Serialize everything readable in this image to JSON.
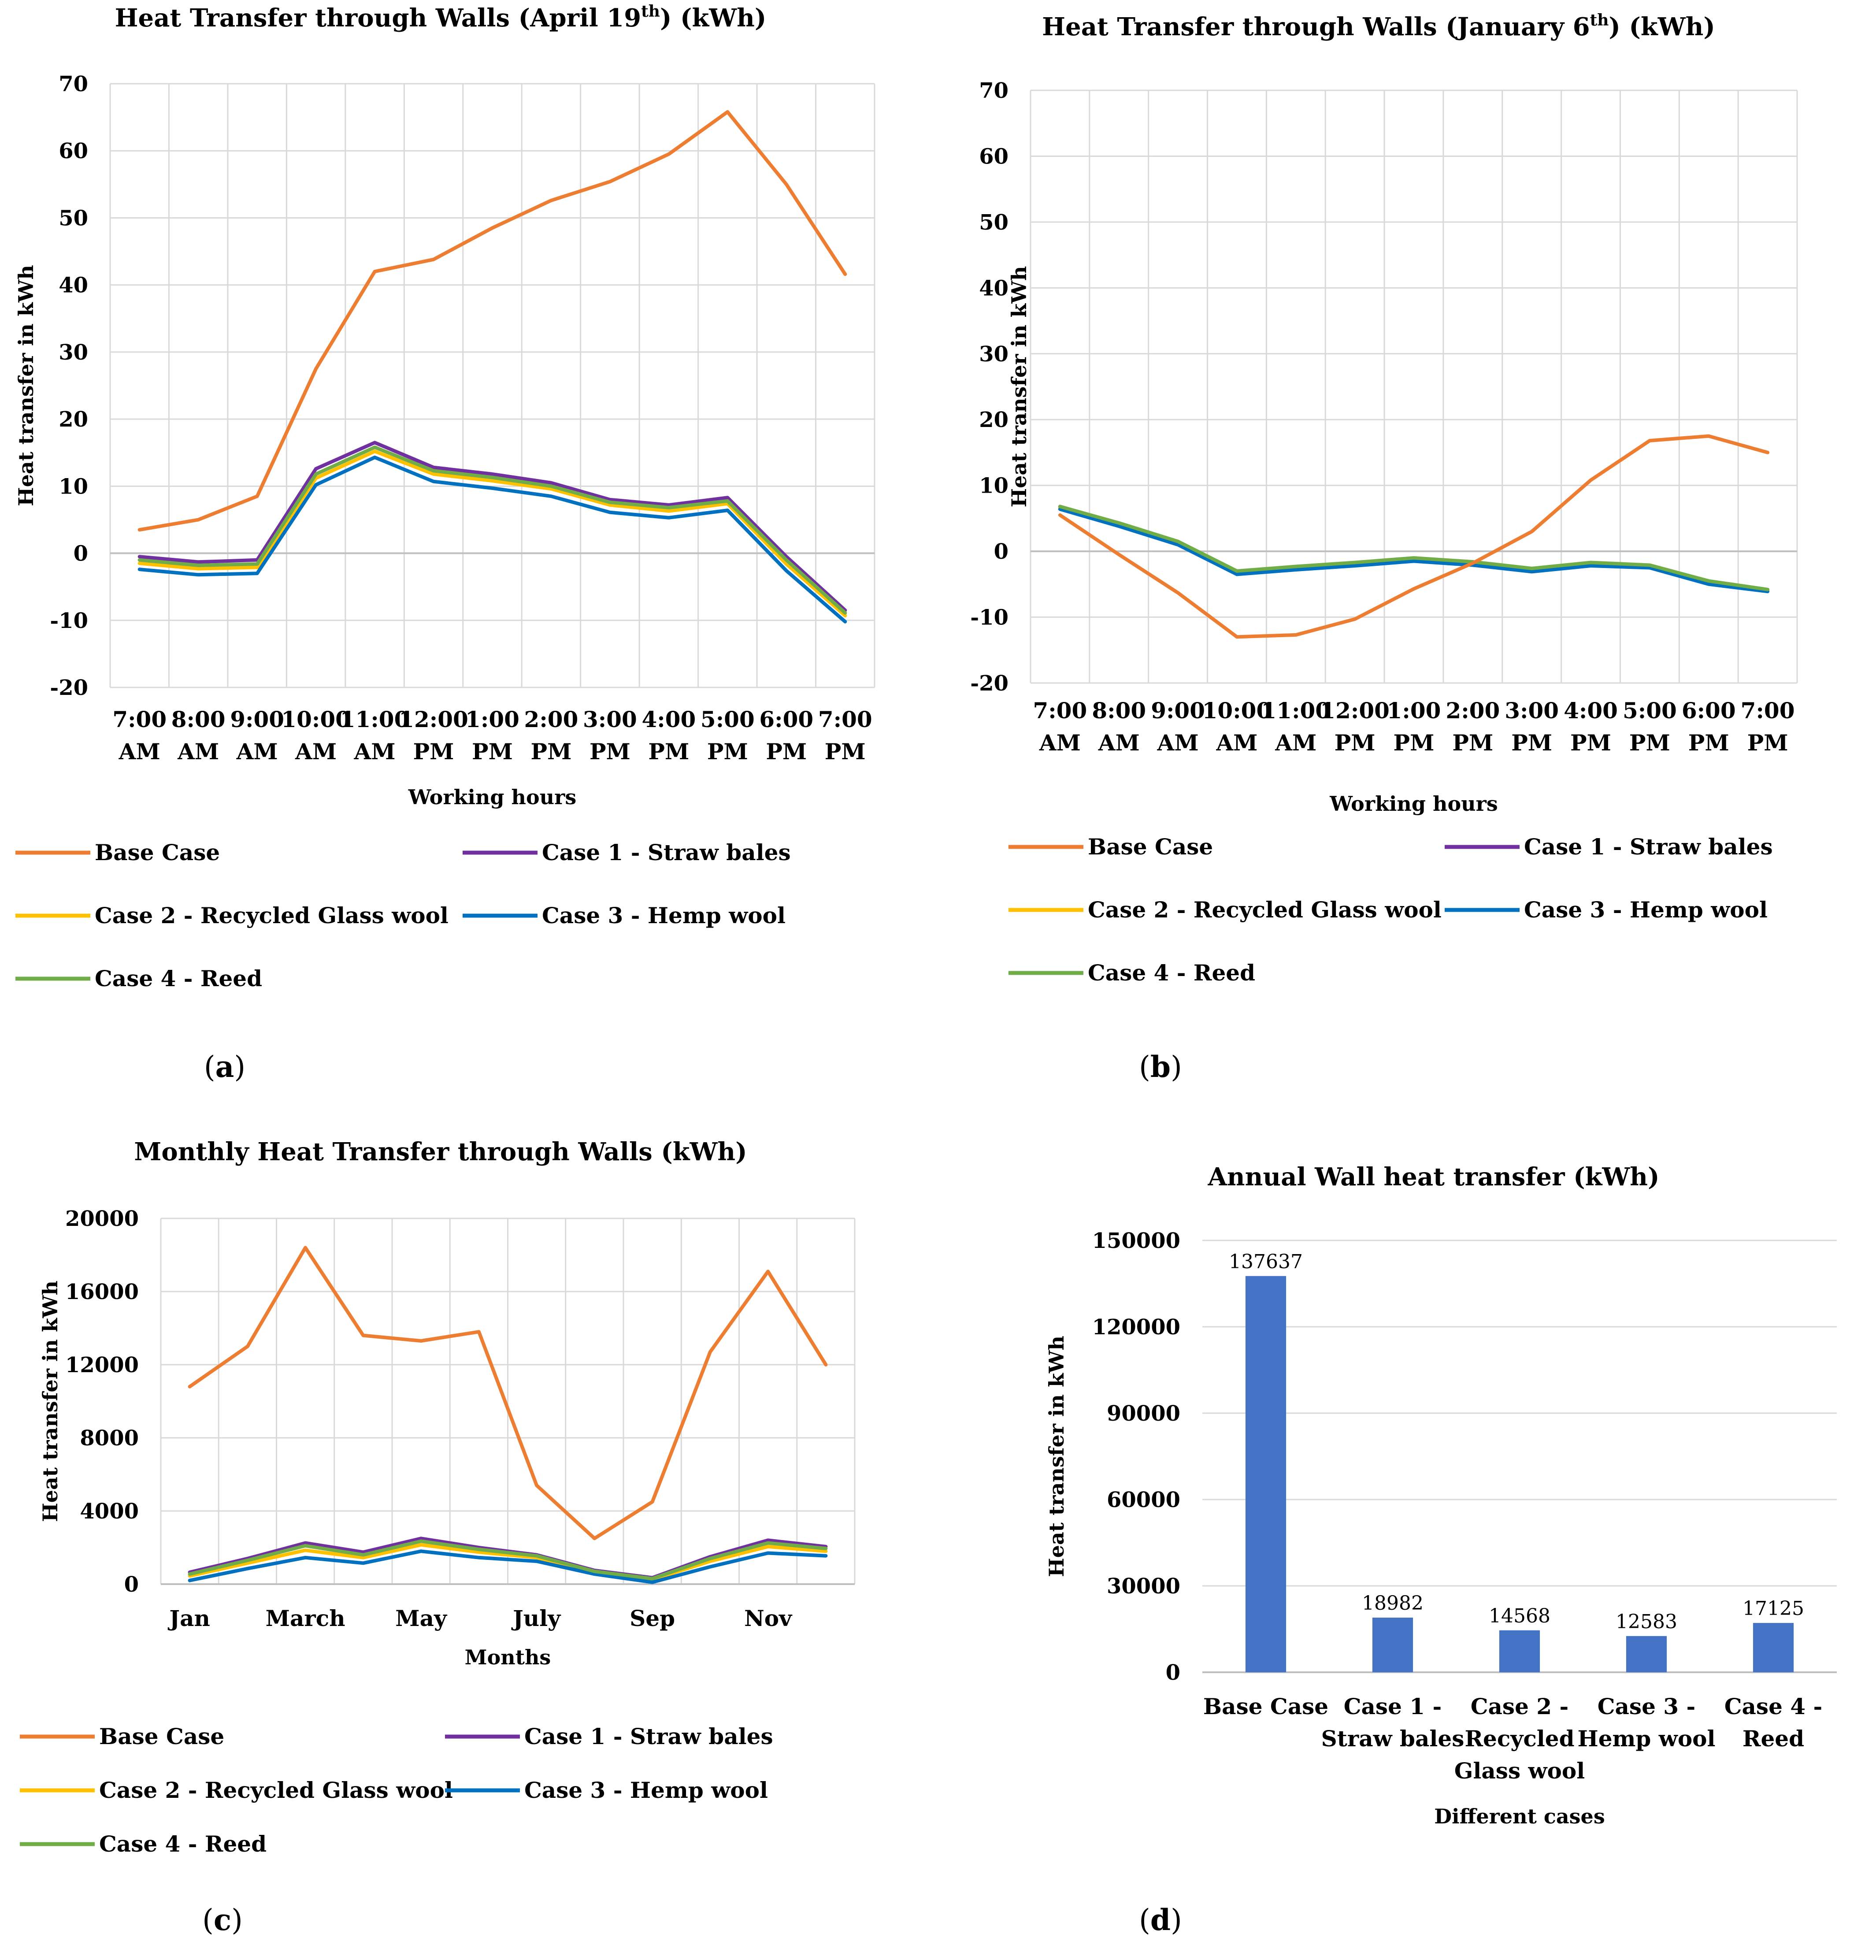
{
  "colors": {
    "base": "#ED7D31",
    "case1": "#7030A0",
    "case2": "#FFC000",
    "case3": "#0070C0",
    "case4": "#70AD47",
    "bar": "#4472C4",
    "grid": "#D9D9D9",
    "axis": "#BFBFBF"
  },
  "legend_labels": [
    "Base Case",
    "Case 1 - Straw bales",
    "Case 2 - Recycled Glass wool",
    "Case 3 - Hemp wool",
    "Case 4 - Reed"
  ],
  "chart_data": [
    {
      "id": "a",
      "type": "line",
      "caption_open": "(",
      "caption_letter": "a",
      "caption_close": ")",
      "title": "Heat Transfer through Walls (April 19",
      "title_sup": "th",
      "title_end": ") (kWh)",
      "xlabel": "Working hours",
      "ylabel": "Heat transfer in kWh",
      "ylim": [
        -20,
        70
      ],
      "yticks": [
        -20,
        -10,
        0,
        10,
        20,
        30,
        40,
        50,
        60,
        70
      ],
      "categories": [
        [
          "7:00",
          "AM"
        ],
        [
          "8:00",
          "AM"
        ],
        [
          "9:00",
          "AM"
        ],
        [
          "10:00",
          "AM"
        ],
        [
          "11:00",
          "AM"
        ],
        [
          "12:00",
          "PM"
        ],
        [
          "1:00",
          "PM"
        ],
        [
          "2:00",
          "PM"
        ],
        [
          "3:00",
          "PM"
        ],
        [
          "4:00",
          "PM"
        ],
        [
          "5:00",
          "PM"
        ],
        [
          "6:00",
          "PM"
        ],
        [
          "7:00",
          "PM"
        ]
      ],
      "series": [
        {
          "name": "Base Case",
          "key": "base",
          "values": [
            3.5,
            5.0,
            8.5,
            27.5,
            42.0,
            43.8,
            48.5,
            52.6,
            55.4,
            59.5,
            65.8,
            55.0,
            41.6
          ]
        },
        {
          "name": "Case 1 - Straw bales",
          "key": "case1",
          "values": [
            -0.5,
            -1.3,
            -1.0,
            12.6,
            16.5,
            12.8,
            11.8,
            10.5,
            8.0,
            7.2,
            8.3,
            -0.5,
            -8.5
          ]
        },
        {
          "name": "Case 2 - Recycled Glass wool",
          "key": "case2",
          "values": [
            -1.5,
            -2.3,
            -2.1,
            11.2,
            15.2,
            11.8,
            10.8,
            9.6,
            7.2,
            6.3,
            7.4,
            -1.6,
            -9.3
          ]
        },
        {
          "name": "Case 3 - Hemp wool",
          "key": "case3",
          "values": [
            -2.4,
            -3.2,
            -3.0,
            10.2,
            14.3,
            10.7,
            9.7,
            8.5,
            6.1,
            5.3,
            6.4,
            -2.6,
            -10.2
          ]
        },
        {
          "name": "Case 4 - Reed",
          "key": "case4",
          "values": [
            -1.0,
            -1.8,
            -1.6,
            11.8,
            15.8,
            12.3,
            11.3,
            10.0,
            7.6,
            6.8,
            7.8,
            -1.0,
            -8.9
          ]
        }
      ]
    },
    {
      "id": "b",
      "type": "line",
      "caption_open": "(",
      "caption_letter": "b",
      "caption_close": ")",
      "title": "Heat Transfer through Walls (January 6",
      "title_sup": "th",
      "title_end": ") (kWh)",
      "xlabel": "Working hours",
      "ylabel": "Heat transfer in kWh",
      "ylim": [
        -20,
        70
      ],
      "yticks": [
        -20,
        -10,
        0,
        10,
        20,
        30,
        40,
        50,
        60,
        70
      ],
      "categories": [
        [
          "7:00",
          "AM"
        ],
        [
          "8:00",
          "AM"
        ],
        [
          "9:00",
          "AM"
        ],
        [
          "10:00",
          "AM"
        ],
        [
          "11:00",
          "AM"
        ],
        [
          "12:00",
          "PM"
        ],
        [
          "1:00",
          "PM"
        ],
        [
          "2:00",
          "PM"
        ],
        [
          "3:00",
          "PM"
        ],
        [
          "4:00",
          "PM"
        ],
        [
          "5:00",
          "PM"
        ],
        [
          "6:00",
          "PM"
        ],
        [
          "7:00",
          "PM"
        ]
      ],
      "series": [
        {
          "name": "Base Case",
          "key": "base",
          "values": [
            5.5,
            -0.5,
            -6.3,
            -13.0,
            -12.7,
            -10.3,
            -5.7,
            -1.8,
            3.0,
            10.8,
            16.8,
            17.5,
            15.0
          ]
        },
        {
          "name": "Case 1 - Straw bales",
          "key": "case1",
          "values": [
            6.8,
            4.2,
            1.4,
            -3.1,
            -2.4,
            -1.8,
            -1.1,
            -1.7,
            -2.7,
            -1.8,
            -2.2,
            -4.6,
            -5.9
          ]
        },
        {
          "name": "Case 2 - Recycled Glass wool",
          "key": "case2",
          "values": [
            6.6,
            4.0,
            1.2,
            -3.3,
            -2.6,
            -2.0,
            -1.3,
            -1.9,
            -2.9,
            -2.0,
            -2.3,
            -4.8,
            -6.0
          ]
        },
        {
          "name": "Case 3 - Hemp wool",
          "key": "case3",
          "values": [
            6.4,
            3.8,
            1.0,
            -3.5,
            -2.8,
            -2.2,
            -1.5,
            -2.1,
            -3.1,
            -2.2,
            -2.5,
            -5.0,
            -6.1
          ]
        },
        {
          "name": "Case 4 - Reed",
          "key": "case4",
          "values": [
            6.8,
            4.3,
            1.5,
            -3.0,
            -2.3,
            -1.7,
            -1.0,
            -1.6,
            -2.6,
            -1.7,
            -2.1,
            -4.5,
            -5.8
          ]
        }
      ]
    },
    {
      "id": "c",
      "type": "line",
      "caption_open": "(",
      "caption_letter": "c",
      "caption_close": ")",
      "title": "Monthly Heat Transfer through Walls (kWh)",
      "title_sup": "",
      "title_end": "",
      "xlabel": "Months",
      "ylabel": "Heat transfer in kWh",
      "ylim": [
        0,
        20000
      ],
      "yticks": [
        0,
        4000,
        8000,
        12000,
        16000,
        20000
      ],
      "categories": [
        [
          "Jan"
        ],
        [
          ""
        ],
        [
          "March"
        ],
        [
          ""
        ],
        [
          "May"
        ],
        [
          ""
        ],
        [
          "July"
        ],
        [
          ""
        ],
        [
          "Sep"
        ],
        [
          ""
        ],
        [
          "Nov"
        ],
        [
          ""
        ]
      ],
      "series": [
        {
          "name": "Base Case",
          "key": "base",
          "values": [
            10800,
            13000,
            18400,
            13600,
            13300,
            13800,
            5400,
            2500,
            4500,
            12700,
            17100,
            12000
          ]
        },
        {
          "name": "Case 1 - Straw bales",
          "key": "case1",
          "values": [
            650,
            1400,
            2250,
            1750,
            2500,
            2000,
            1600,
            750,
            350,
            1500,
            2400,
            2050
          ]
        },
        {
          "name": "Case 2 - Recycled Glass wool",
          "key": "case2",
          "values": [
            450,
            1150,
            1850,
            1450,
            2150,
            1750,
            1450,
            650,
            250,
            1250,
            2050,
            1800
          ]
        },
        {
          "name": "Case 3 - Hemp wool",
          "key": "case3",
          "values": [
            200,
            850,
            1450,
            1150,
            1800,
            1450,
            1250,
            550,
            100,
            950,
            1700,
            1550
          ]
        },
        {
          "name": "Case 4 - Reed",
          "key": "case4",
          "values": [
            550,
            1300,
            2100,
            1600,
            2350,
            1900,
            1550,
            700,
            300,
            1400,
            2250,
            1950
          ]
        }
      ]
    },
    {
      "id": "d",
      "type": "bar",
      "caption_open": "(",
      "caption_letter": "d",
      "caption_close": ")",
      "title": "Annual Wall heat transfer (kWh)",
      "title_sup": "",
      "title_end": "",
      "xlabel": "Different cases",
      "ylabel": "Heat transfer in kWh",
      "ylim": [
        0,
        150000
      ],
      "yticks": [
        0,
        30000,
        60000,
        90000,
        120000,
        150000
      ],
      "categories": [
        [
          "Base Case"
        ],
        [
          "Case 1 -",
          "Straw bales"
        ],
        [
          "Case 2 -",
          "Recycled",
          "Glass wool"
        ],
        [
          "Case 3 -",
          "Hemp wool"
        ],
        [
          "Case 4 -",
          "Reed"
        ]
      ],
      "values": [
        137637,
        18982,
        14568,
        12583,
        17125
      ],
      "data_labels": [
        "137637",
        "18982",
        "14568",
        "12583",
        "17125"
      ]
    }
  ]
}
